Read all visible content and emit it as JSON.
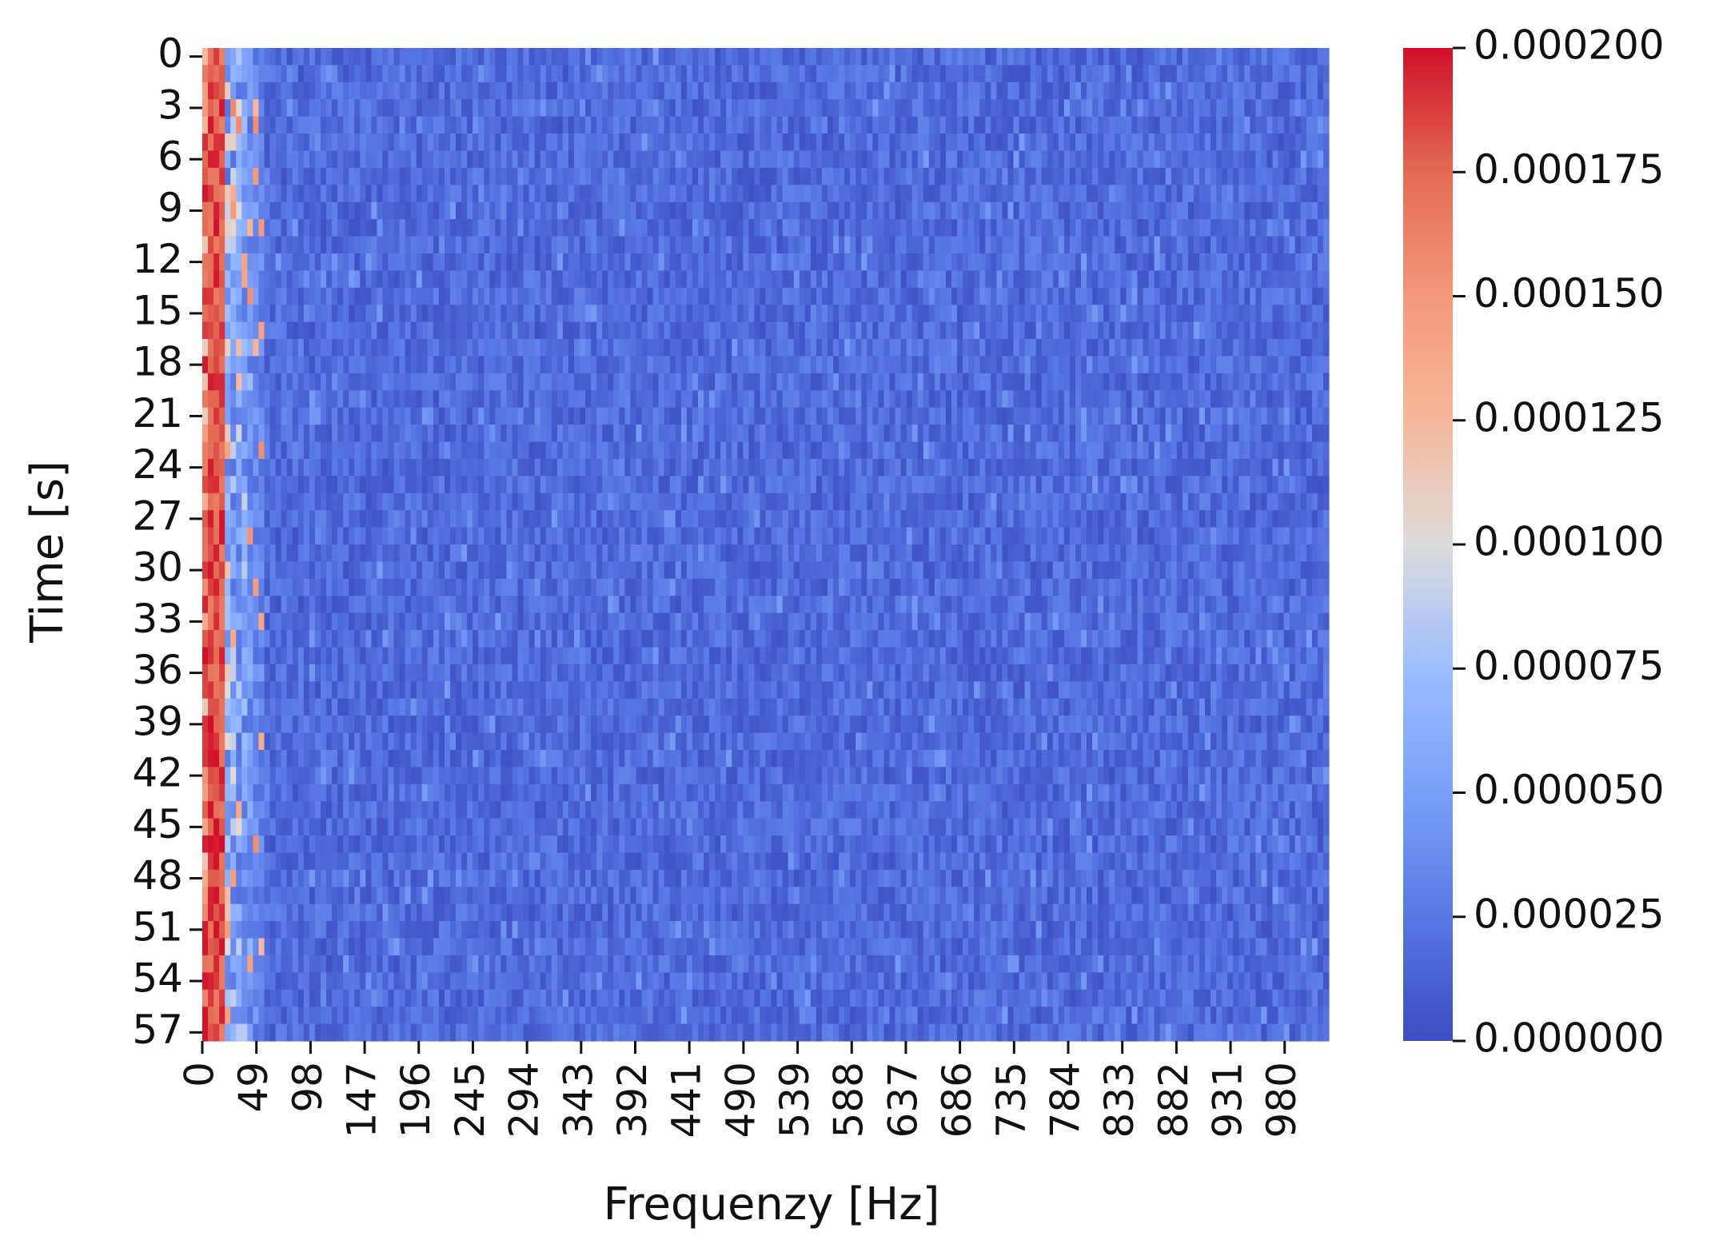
{
  "chart_data": {
    "type": "heatmap",
    "title": "",
    "xlabel": "Frequenzy [Hz]",
    "ylabel": "Time [s]",
    "x_tick_labels": [
      "0",
      "49",
      "98",
      "147",
      "196",
      "245",
      "294",
      "343",
      "392",
      "441",
      "490",
      "539",
      "588",
      "637",
      "686",
      "735",
      "784",
      "833",
      "882",
      "931",
      "980"
    ],
    "x_tick_values": [
      0,
      49,
      98,
      147,
      196,
      245,
      294,
      343,
      392,
      441,
      490,
      539,
      588,
      637,
      686,
      735,
      784,
      833,
      882,
      931,
      980
    ],
    "y_tick_labels": [
      "0",
      "3",
      "6",
      "9",
      "12",
      "15",
      "18",
      "21",
      "24",
      "27",
      "30",
      "33",
      "36",
      "39",
      "42",
      "45",
      "48",
      "51",
      "54",
      "57"
    ],
    "y_tick_values": [
      0,
      3,
      6,
      9,
      12,
      15,
      18,
      21,
      24,
      27,
      30,
      33,
      36,
      39,
      42,
      45,
      48,
      51,
      54,
      57
    ],
    "xlim": [
      0,
      1020
    ],
    "ylim": [
      0,
      58
    ],
    "colormap": "coolwarm",
    "colorbar": {
      "vmin": 0,
      "vmax": 0.0002,
      "tick_labels": [
        "0.000200",
        "0.000175",
        "0.000150",
        "0.000125",
        "0.000100",
        "0.000075",
        "0.000050",
        "0.000025",
        "0.000000"
      ],
      "tick_values": [
        0.0002,
        0.000175,
        0.00015,
        0.000125,
        0.0001,
        7.5e-05,
        5e-05,
        2.5e-05,
        0
      ]
    },
    "description_of_values": "",
    "colors": {
      "low": "#3b4cc0",
      "mid": "#dddddd",
      "high": "#b40426"
    }
  }
}
